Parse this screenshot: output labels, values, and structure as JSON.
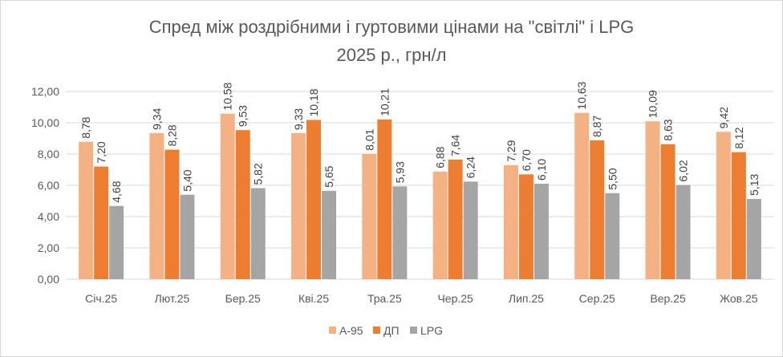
{
  "chart_data": {
    "type": "bar",
    "title": "Спред між роздрібними і гуртовими цінами на \"світлі\" і LPG",
    "subtitle": "2025 р., грн/л",
    "xlabel": "",
    "ylabel": "",
    "ylim": [
      0,
      12
    ],
    "yticks": [
      "0,00",
      "2,00",
      "4,00",
      "6,00",
      "8,00",
      "10,00",
      "12,00"
    ],
    "grid": true,
    "legend_position": "bottom",
    "categories": [
      "Січ.25",
      "Лют.25",
      "Бер.25",
      "Кві.25",
      "Тра.25",
      "Чер.25",
      "Лип.25",
      "Сер.25",
      "Вер.25",
      "Жов.25"
    ],
    "series": [
      {
        "name": "А-95",
        "color": "#F4B183",
        "values": [
          8.78,
          9.34,
          10.58,
          9.33,
          8.01,
          6.88,
          7.29,
          10.63,
          10.09,
          9.42
        ]
      },
      {
        "name": "ДП",
        "color": "#ED7D31",
        "values": [
          7.2,
          8.28,
          9.53,
          10.18,
          10.21,
          7.64,
          6.7,
          8.87,
          8.63,
          8.12
        ]
      },
      {
        "name": "LPG",
        "color": "#A5A5A5",
        "values": [
          4.68,
          5.4,
          5.82,
          5.65,
          5.93,
          6.24,
          6.1,
          5.5,
          6.02,
          5.13
        ]
      }
    ]
  }
}
